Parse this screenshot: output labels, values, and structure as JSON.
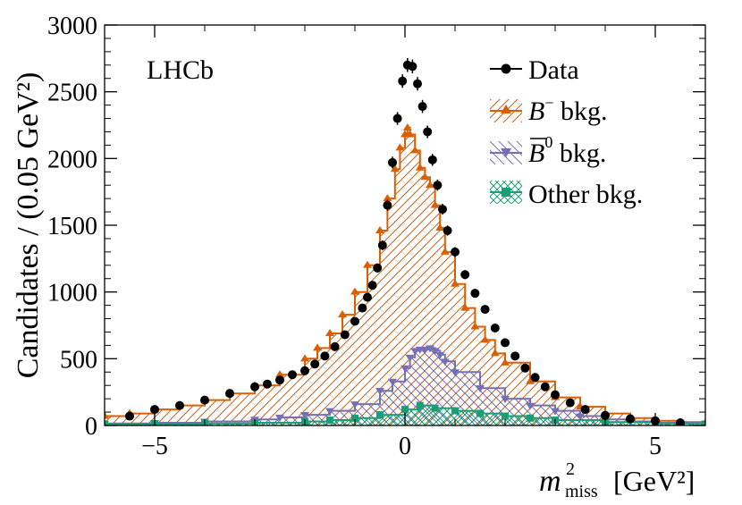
{
  "chart_data": {
    "type": "line",
    "title": "",
    "experiment_label": "LHCb",
    "ylabel": "Candidates / (0.05 GeV²)",
    "xlabel_main": "m",
    "xlabel_sup": "2",
    "xlabel_sub": "miss",
    "xlabel_unit": "[GeV²]",
    "xlim": [
      -6,
      6
    ],
    "ylim": [
      0,
      3000
    ],
    "x_ticks": [
      -5,
      0,
      5
    ],
    "x_tick_labels": [
      "−5",
      "0",
      "5"
    ],
    "y_ticks": [
      0,
      500,
      1000,
      1500,
      2000,
      2500,
      3000
    ],
    "y_tick_labels": [
      "0",
      "500",
      "1000",
      "1500",
      "2000",
      "2500",
      "3000"
    ],
    "legend": {
      "placement": "top-right",
      "entries": [
        {
          "key": "data",
          "label": "Data"
        },
        {
          "key": "bminus",
          "label_main": "B",
          "label_sup": "−",
          "label_rest": " bkg."
        },
        {
          "key": "b0",
          "label_main": "B",
          "label_sup": "0",
          "label_rest": " bkg."
        },
        {
          "key": "other",
          "label": "Other bkg."
        }
      ]
    },
    "colors": {
      "data": "#000000",
      "bminus": "#d95f02",
      "b0": "#7570b3",
      "other": "#1b9e77"
    },
    "series": [
      {
        "key": "bminus",
        "name": "B− bkg.",
        "x": [
          -6.0,
          -5.5,
          -5.0,
          -4.5,
          -4.0,
          -3.5,
          -3.0,
          -2.5,
          -2.0,
          -1.75,
          -1.5,
          -1.25,
          -1.0,
          -0.75,
          -0.5,
          -0.35,
          -0.2,
          -0.1,
          0.0,
          0.05,
          0.1,
          0.2,
          0.3,
          0.4,
          0.5,
          0.6,
          0.7,
          0.8,
          1.0,
          1.2,
          1.4,
          1.6,
          1.8,
          2.0,
          2.5,
          3.0,
          3.5,
          4.0,
          4.5,
          5.0,
          5.5,
          6.0
        ],
        "values": [
          70,
          90,
          120,
          150,
          190,
          240,
          300,
          380,
          500,
          580,
          690,
          830,
          1000,
          1200,
          1460,
          1700,
          1920,
          2080,
          2180,
          2230,
          2180,
          2060,
          1930,
          1860,
          1800,
          1650,
          1480,
          1300,
          1060,
          880,
          740,
          640,
          540,
          470,
          330,
          210,
          140,
          90,
          55,
          35,
          25,
          20
        ]
      },
      {
        "key": "b0",
        "name": "B0 bkg.",
        "x": [
          -6.0,
          -5.0,
          -4.0,
          -3.0,
          -2.5,
          -2.0,
          -1.5,
          -1.0,
          -0.5,
          -0.25,
          0.0,
          0.1,
          0.2,
          0.3,
          0.4,
          0.5,
          0.6,
          0.7,
          0.8,
          1.0,
          1.5,
          2.0,
          2.5,
          3.0,
          3.5,
          4.0,
          4.5,
          5.0,
          6.0
        ],
        "values": [
          15,
          20,
          30,
          45,
          60,
          80,
          110,
          160,
          260,
          330,
          430,
          510,
          560,
          570,
          570,
          580,
          560,
          530,
          480,
          400,
          280,
          200,
          150,
          110,
          70,
          45,
          30,
          20,
          15
        ]
      },
      {
        "key": "other",
        "name": "Other bkg.",
        "x": [
          -6.0,
          -5.0,
          -4.0,
          -3.0,
          -2.0,
          -1.5,
          -1.0,
          -0.5,
          0.0,
          0.3,
          0.6,
          1.0,
          1.5,
          2.0,
          2.5,
          3.0,
          4.0,
          5.0,
          6.0
        ],
        "values": [
          10,
          12,
          15,
          20,
          30,
          40,
          55,
          80,
          120,
          150,
          130,
          110,
          90,
          70,
          55,
          40,
          25,
          15,
          10
        ]
      },
      {
        "key": "data",
        "name": "Data",
        "x": [
          -5.5,
          -5.0,
          -4.5,
          -4.0,
          -3.5,
          -3.0,
          -2.75,
          -2.5,
          -2.25,
          -2.0,
          -1.8,
          -1.6,
          -1.4,
          -1.2,
          -1.0,
          -0.85,
          -0.75,
          -0.65,
          -0.55,
          -0.45,
          -0.35,
          -0.25,
          -0.15,
          -0.05,
          0.05,
          0.15,
          0.25,
          0.35,
          0.45,
          0.55,
          0.65,
          0.75,
          0.85,
          1.0,
          1.2,
          1.4,
          1.6,
          1.8,
          2.0,
          2.2,
          2.4,
          2.6,
          2.8,
          3.0,
          3.3,
          3.6,
          4.0,
          4.5,
          5.0,
          5.5
        ],
        "values": [
          70,
          120,
          150,
          190,
          240,
          290,
          310,
          340,
          380,
          410,
          460,
          520,
          590,
          680,
          780,
          880,
          960,
          1050,
          1180,
          1350,
          1650,
          1970,
          2300,
          2580,
          2700,
          2690,
          2560,
          2390,
          2200,
          1990,
          1800,
          1620,
          1460,
          1300,
          1130,
          990,
          870,
          730,
          620,
          520,
          430,
          360,
          290,
          230,
          170,
          120,
          75,
          50,
          35,
          20
        ]
      }
    ]
  }
}
